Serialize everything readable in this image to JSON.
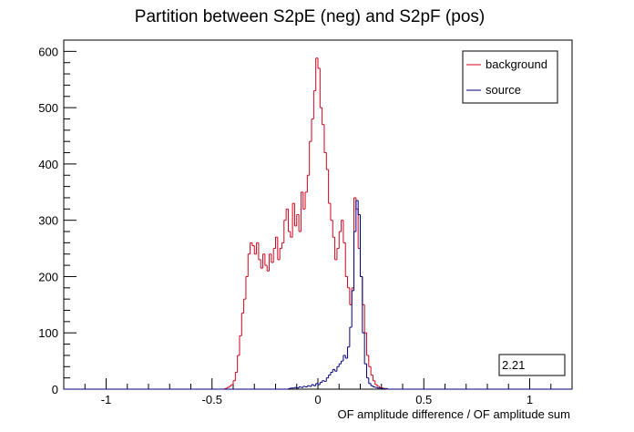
{
  "chart_data": {
    "type": "line",
    "title": "Partition between S2pE (neg) and S2pF (pos)",
    "xlabel": "OF amplitude difference / OF amplitude sum",
    "ylabel": "",
    "xlim": [
      -1.2,
      1.2
    ],
    "ylim": [
      0,
      620
    ],
    "x_ticks": [
      {
        "value": -1,
        "label": "-1"
      },
      {
        "value": -0.5,
        "label": "-0.5"
      },
      {
        "value": 0,
        "label": "0"
      },
      {
        "value": 0.5,
        "label": "0.5"
      },
      {
        "value": 1,
        "label": "1"
      }
    ],
    "y_ticks": [
      {
        "value": 0,
        "label": "0"
      },
      {
        "value": 100,
        "label": "100"
      },
      {
        "value": 200,
        "label": "200"
      },
      {
        "value": 300,
        "label": "300"
      },
      {
        "value": 400,
        "label": "400"
      },
      {
        "value": 500,
        "label": "500"
      },
      {
        "value": 600,
        "label": "600"
      }
    ],
    "bin_width": 0.01,
    "legend_position": "top-right",
    "series": [
      {
        "name": "background",
        "color": "#d0021b",
        "x_start": -0.44,
        "values": [
          1,
          3,
          5,
          8,
          15,
          30,
          60,
          95,
          135,
          160,
          200,
          240,
          260,
          255,
          240,
          260,
          230,
          215,
          240,
          220,
          210,
          240,
          225,
          250,
          270,
          230,
          250,
          260,
          300,
          320,
          280,
          270,
          330,
          290,
          310,
          280,
          350,
          320,
          350,
          380,
          440,
          480,
          530,
          588,
          570,
          500,
          470,
          420,
          390,
          330,
          300,
          270,
          230,
          250,
          280,
          300,
          260,
          200,
          180,
          150,
          180,
          340,
          320,
          250,
          200,
          150,
          100,
          60,
          40,
          25,
          15,
          8,
          5,
          3,
          2,
          1
        ]
      },
      {
        "name": "source",
        "color": "#00007f",
        "x_start": -0.14,
        "values": [
          1,
          2,
          2,
          3,
          2,
          4,
          3,
          5,
          4,
          6,
          5,
          8,
          6,
          10,
          8,
          12,
          15,
          14,
          20,
          25,
          30,
          35,
          32,
          40,
          45,
          50,
          60,
          55,
          75,
          110,
          175,
          280,
          335,
          310,
          200,
          100,
          45,
          20,
          10,
          6,
          4,
          3,
          2,
          2,
          1,
          1,
          1
        ]
      }
    ],
    "legend": {
      "entries": [
        "background",
        "source"
      ]
    },
    "stat_box": {
      "value": "2.21"
    }
  }
}
